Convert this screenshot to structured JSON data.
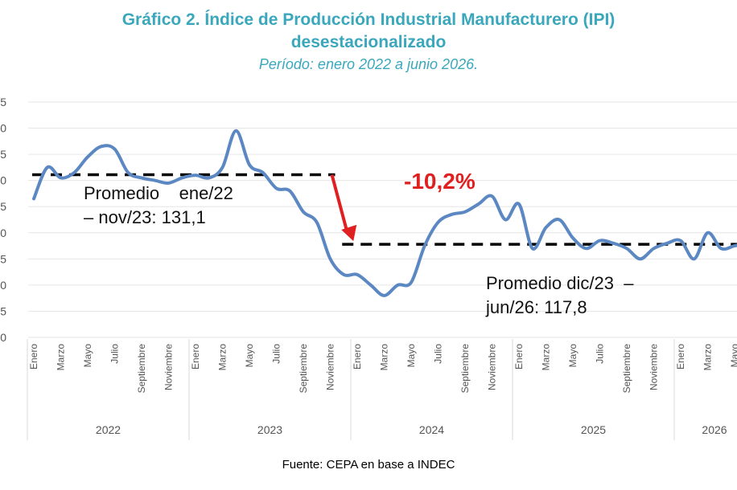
{
  "title_line1": "Gráfico 2. Índice de Producción Industrial Manufacturero (IPI)",
  "title_line2": "desestacionalizado",
  "subtitle": "Período: enero 2022 a junio 2026.",
  "source": "Fuente: CEPA en base a INDEC",
  "colors": {
    "line": "#5b87c2",
    "title": "#3aa7bd",
    "arrow": "#e02020",
    "dash": "#000000"
  },
  "annotations": {
    "avg1_line1": "Promedio    ene/22",
    "avg1_line2": "– nov/23: 131,1",
    "avg2_line1": "Promedio dic/23  –",
    "avg2_line2": "jun/26: 117,8",
    "change": "-10,2%"
  },
  "chart_data": {
    "type": "line",
    "title": "Gráfico 2. Índice de Producción Industrial Manufacturero (IPI) desestacionalizado",
    "subtitle": "Período: enero 2022 a junio 2026.",
    "x_month_labels": [
      "Enero",
      "Marzo",
      "Mayo",
      "Julio",
      "Septiembre",
      "Noviembre"
    ],
    "years": [
      "2022",
      "2023",
      "2024",
      "2025",
      "2026"
    ],
    "ylim": [
      100,
      145
    ],
    "grid": true,
    "series": [
      {
        "values": [
          126.5,
          132.5,
          130.5,
          131.5,
          134.5,
          136.5,
          136.0,
          131.5,
          130.5,
          130.0,
          129.5,
          130.5,
          131.0,
          130.5,
          132.5,
          139.5,
          133.0,
          131.5,
          128.5,
          128.0,
          124.0,
          122.0,
          115.0,
          112.0,
          112.0,
          110.0,
          108.0,
          110.0,
          110.5,
          117.5,
          122.0,
          123.5,
          124.0,
          125.5,
          127.0,
          122.5,
          125.5,
          117.0,
          121.0,
          122.5,
          119.0,
          117.0,
          118.5,
          118.0,
          117.0,
          115.0,
          117.0,
          118.0,
          118.5,
          115.0,
          120.0,
          117.0,
          117.5,
          118.0
        ]
      }
    ],
    "reference_lines": [
      {
        "value": 131.1,
        "from_index": 0,
        "to_index": 22
      },
      {
        "value": 117.8,
        "from_index": 23,
        "to_index": 53
      }
    ]
  }
}
